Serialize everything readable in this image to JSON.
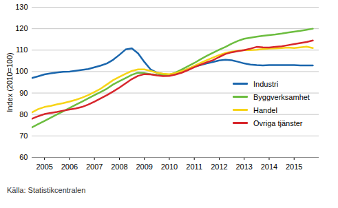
{
  "chart_data": {
    "type": "line",
    "ylabel": "Index (2010=100)",
    "caption": "Källa: Statistikcentralen",
    "x": [
      2004.5,
      2004.75,
      2005,
      2005.25,
      2005.5,
      2005.75,
      2006,
      2006.25,
      2006.5,
      2006.75,
      2007,
      2007.25,
      2007.5,
      2007.75,
      2008,
      2008.25,
      2008.5,
      2008.75,
      2009,
      2009.25,
      2009.5,
      2009.75,
      2010,
      2010.25,
      2010.5,
      2010.75,
      2011,
      2011.25,
      2011.5,
      2011.75,
      2012,
      2012.25,
      2012.5,
      2012.75,
      2013,
      2013.25,
      2013.5,
      2013.75,
      2014,
      2014.25,
      2014.5,
      2014.75,
      2015,
      2015.25,
      2015.5,
      2015.75
    ],
    "series": [
      {
        "name": "Industri",
        "color": "#1a66ad",
        "values": [
          97,
          97.8,
          98.7,
          99.2,
          99.6,
          99.9,
          100,
          100.4,
          100.8,
          101.2,
          102,
          102.8,
          103.8,
          105.5,
          107.8,
          110.3,
          110.8,
          108.5,
          104.5,
          101,
          99.5,
          98.8,
          98.5,
          99,
          100.2,
          101.2,
          102.3,
          103,
          103.8,
          104.5,
          105.2,
          105.5,
          105.3,
          104.6,
          103.8,
          103.3,
          103,
          102.9,
          103,
          103,
          103,
          103,
          103,
          102.9,
          102.9,
          102.9
        ]
      },
      {
        "name": "Byggverksamhet",
        "color": "#6cbd3f",
        "values": [
          74,
          75.5,
          77,
          78.5,
          80,
          81.5,
          83,
          84.5,
          86,
          87.5,
          89,
          90.5,
          92,
          94,
          95.5,
          97,
          98.5,
          99.5,
          99.3,
          98.8,
          98.5,
          98.3,
          98.5,
          99.5,
          101,
          102.5,
          104,
          105.7,
          107.3,
          108.8,
          110.2,
          111.5,
          113,
          114.3,
          115.3,
          115.8,
          116.3,
          116.7,
          117,
          117.3,
          117.7,
          118.2,
          118.6,
          119,
          119.5,
          120
        ]
      },
      {
        "name": "Handel",
        "color": "#f7d417",
        "values": [
          81,
          82.5,
          83.5,
          84,
          84.7,
          85.3,
          86,
          86.8,
          87.8,
          89,
          90.5,
          92,
          94,
          96,
          97.5,
          99,
          100.3,
          101,
          101,
          100.3,
          99.5,
          99,
          98.8,
          99.3,
          100.2,
          101.3,
          102.7,
          104,
          105.3,
          106.5,
          107.7,
          108.7,
          109.3,
          109.7,
          110,
          110,
          110.2,
          110.5,
          110.7,
          110.8,
          111,
          111.2,
          111,
          111.3,
          111.6,
          111
        ]
      },
      {
        "name": "Övriga tjänster",
        "color": "#d7262c",
        "values": [
          78,
          79.2,
          80.2,
          80.7,
          81.2,
          81.8,
          82.3,
          82.8,
          83.5,
          84.6,
          86,
          87.5,
          89,
          90.7,
          92.5,
          94.5,
          96.5,
          98,
          98.8,
          98.7,
          98.2,
          97.9,
          98,
          98.6,
          99.5,
          100.7,
          102,
          103.2,
          104.3,
          105.3,
          106.8,
          108.2,
          109,
          109.5,
          110,
          110.7,
          111.5,
          111.3,
          111.2,
          111.5,
          111.8,
          112.3,
          112.8,
          113.3,
          113.8,
          114.5
        ]
      }
    ],
    "xlim": [
      2004.5,
      2016
    ],
    "xticks": [
      2005,
      2006,
      2007,
      2008,
      2009,
      2010,
      2011,
      2012,
      2013,
      2014,
      2015
    ],
    "ylim": [
      60,
      130
    ],
    "yticks": [
      60,
      70,
      80,
      90,
      100,
      110,
      120,
      130
    ],
    "grid": true,
    "legend": "right"
  }
}
